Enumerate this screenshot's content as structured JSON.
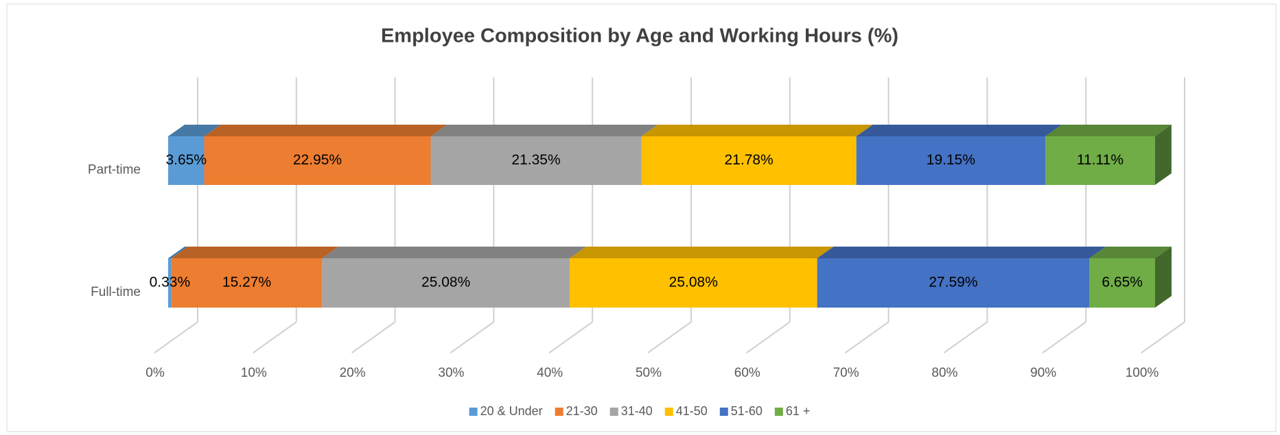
{
  "chart_data": {
    "type": "bar",
    "orientation": "horizontal",
    "stacked": "percent",
    "title": "Employee Composition by Age and Working Hours (%)",
    "categories": [
      "Part-time",
      "Full-time"
    ],
    "series": [
      {
        "name": "20 & Under",
        "color": "#5b9bd5",
        "values": [
          3.65,
          0.33
        ],
        "value_labels": [
          "3.65%",
          "0.33%"
        ]
      },
      {
        "name": "21-30",
        "color": "#ed7d31",
        "values": [
          22.95,
          15.27
        ],
        "value_labels": [
          "22.95%",
          "15.27%"
        ]
      },
      {
        "name": "31-40",
        "color": "#a5a5a5",
        "values": [
          21.35,
          25.08
        ],
        "value_labels": [
          "21.35%",
          "25.08%"
        ]
      },
      {
        "name": "41-50",
        "color": "#ffc000",
        "values": [
          21.78,
          25.08
        ],
        "value_labels": [
          "21.78%",
          "25.08%"
        ]
      },
      {
        "name": "51-60",
        "color": "#4472c4",
        "values": [
          19.15,
          27.59
        ],
        "value_labels": [
          "19.15%",
          "27.59%"
        ]
      },
      {
        "name": "61 +",
        "color": "#70ad47",
        "values": [
          11.11,
          6.65
        ],
        "value_labels": [
          "11.11%",
          "6.65%"
        ]
      }
    ],
    "xlim": [
      0,
      100
    ],
    "xticks": [
      {
        "value": 0,
        "label": "0%"
      },
      {
        "value": 10,
        "label": "10%"
      },
      {
        "value": 20,
        "label": "20%"
      },
      {
        "value": 30,
        "label": "30%"
      },
      {
        "value": 40,
        "label": "40%"
      },
      {
        "value": 50,
        "label": "50%"
      },
      {
        "value": 60,
        "label": "60%"
      },
      {
        "value": 70,
        "label": "70%"
      },
      {
        "value": 80,
        "label": "80%"
      },
      {
        "value": 90,
        "label": "90%"
      },
      {
        "value": 100,
        "label": "100%"
      }
    ],
    "grid": true,
    "legend": "bottom"
  }
}
